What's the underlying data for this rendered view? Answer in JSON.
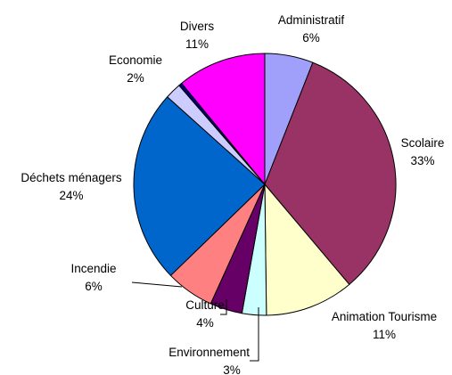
{
  "chart_data": {
    "type": "pie",
    "start_angle_deg": 0,
    "direction": "clockwise",
    "slices": [
      {
        "label": "Administratif",
        "value": 6,
        "value_label": "6%",
        "color": "#a0a0fa"
      },
      {
        "label": "Scolaire",
        "value": 33,
        "value_label": "33%",
        "color": "#993366"
      },
      {
        "label": "Animation Tourisme",
        "value": 11,
        "value_label": "11%",
        "color": "#ffffcc"
      },
      {
        "label": "Environnement",
        "value": 3,
        "value_label": "3%",
        "color": "#ccffff"
      },
      {
        "label": "Culture",
        "value": 4,
        "value_label": "4%",
        "color": "#660066"
      },
      {
        "label": "Incendie",
        "value": 6,
        "value_label": "6%",
        "color": "#ff8080"
      },
      {
        "label": "Déchets ménagers",
        "value": 24,
        "value_label": "24%",
        "color": "#0066cc"
      },
      {
        "label": "Economie",
        "value": 2,
        "value_label": "2%",
        "color": "#ccccff"
      },
      {
        "label": "",
        "value": 0.4,
        "value_label": "",
        "color": "#000080"
      },
      {
        "label": "Divers",
        "value": 11,
        "value_label": "11%",
        "color": "#ff00ff"
      }
    ]
  }
}
